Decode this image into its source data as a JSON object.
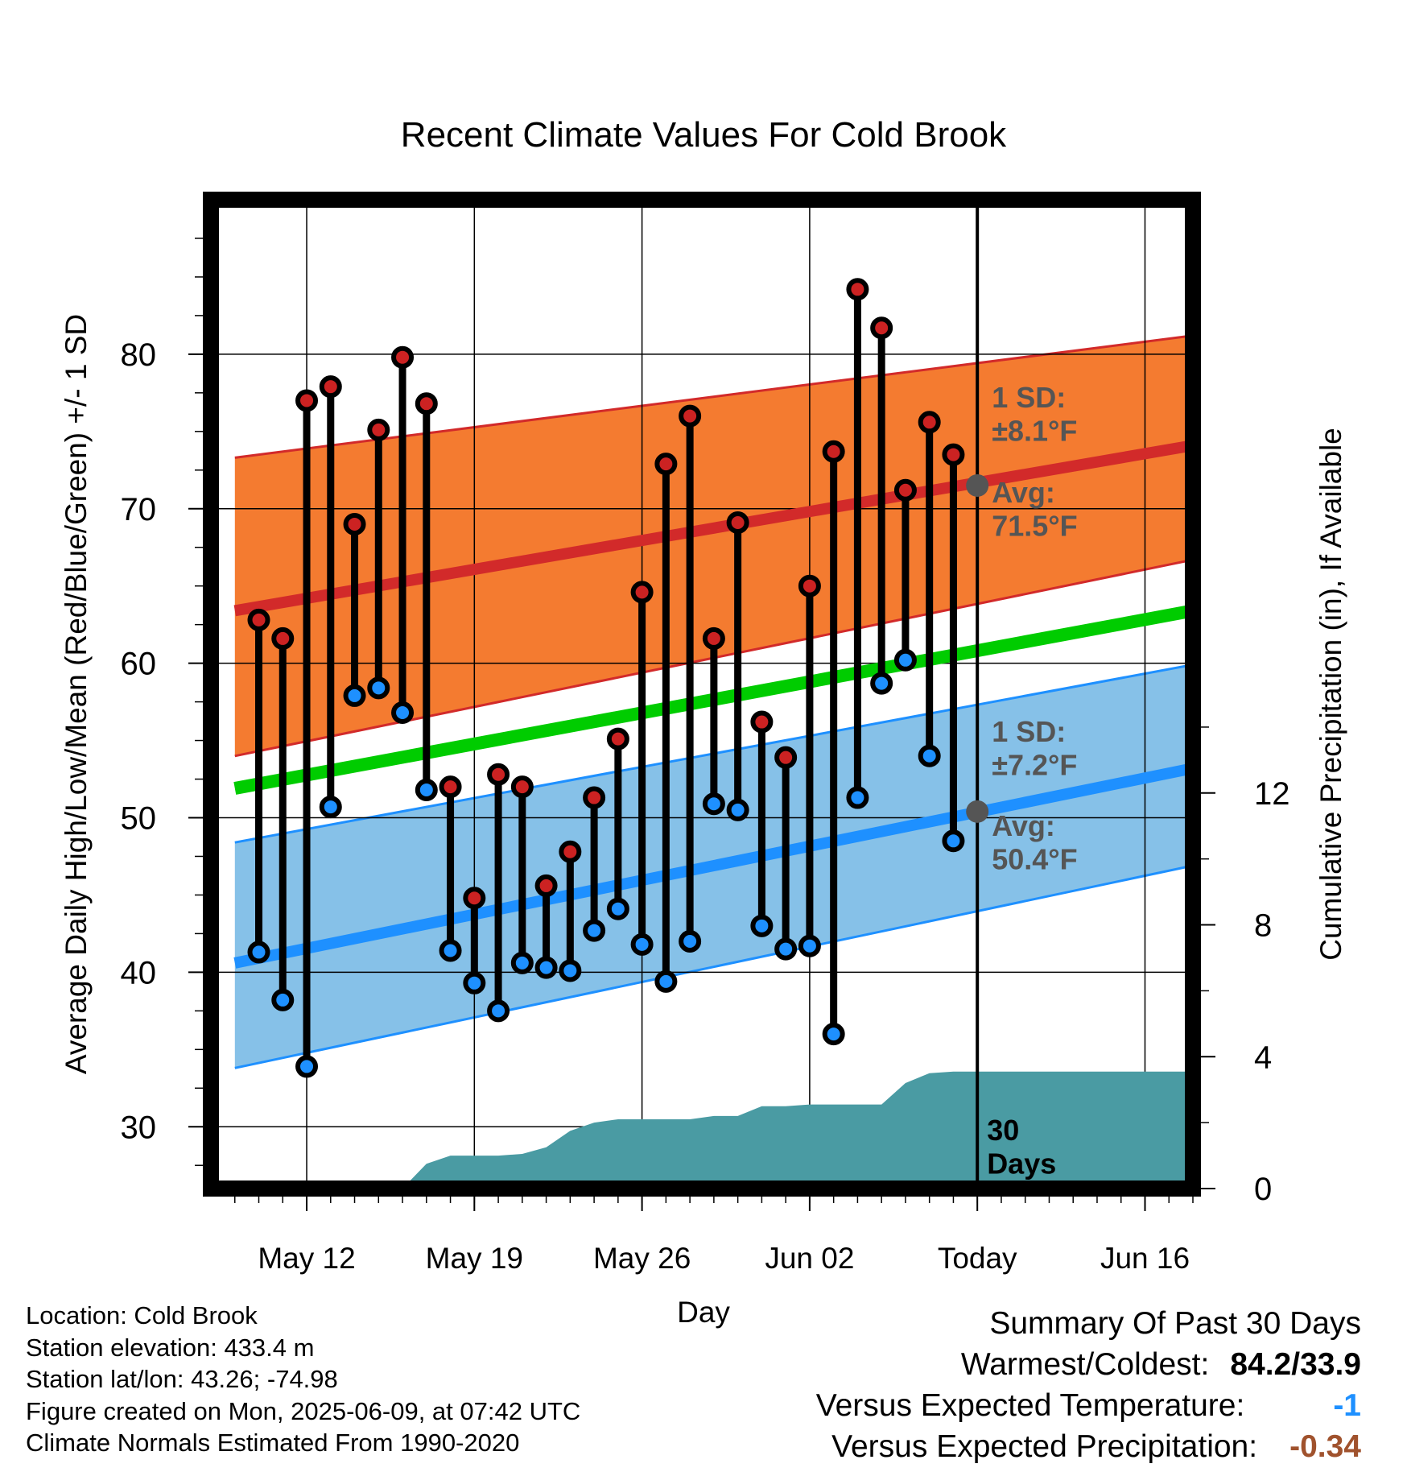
{
  "chart_data": {
    "type": "line",
    "title": "Recent Climate Values For Cold Brook",
    "xlabel": "Day",
    "ylabel_left": "Average Daily High/Low/Mean (Red/Blue/Green) +/- 1 SD",
    "ylabel_right": "Cumulative Precipitation (in), If Available",
    "ylim_left": [
      26,
      90
    ],
    "ylim_right": [
      0,
      30
    ],
    "x_ticks": [
      "May 12",
      "May 19",
      "May 26",
      "Jun 02",
      "Today",
      "Jun 16"
    ],
    "y_ticks_left": [
      30,
      40,
      50,
      60,
      70,
      80
    ],
    "y_ticks_right": [
      0,
      4,
      8,
      12
    ],
    "grid": true,
    "days": [
      "2025-05-10",
      "2025-05-11",
      "2025-05-12",
      "2025-05-13",
      "2025-05-14",
      "2025-05-15",
      "2025-05-16",
      "2025-05-17",
      "2025-05-18",
      "2025-05-19",
      "2025-05-20",
      "2025-05-21",
      "2025-05-22",
      "2025-05-23",
      "2025-05-24",
      "2025-05-25",
      "2025-05-26",
      "2025-05-27",
      "2025-05-28",
      "2025-05-29",
      "2025-05-30",
      "2025-05-31",
      "2025-06-01",
      "2025-06-02",
      "2025-06-03",
      "2025-06-04",
      "2025-06-05",
      "2025-06-06",
      "2025-06-07",
      "2025-06-08"
    ],
    "x_tick_days": [
      "2025-05-12",
      "2025-05-19",
      "2025-05-26",
      "2025-06-02",
      "2025-06-09",
      "2025-06-16"
    ],
    "x_range": [
      "2025-05-08",
      "2025-06-18"
    ],
    "series": [
      {
        "name": "High",
        "color": "#cc2222",
        "values": [
          62.8,
          61.6,
          77.0,
          77.9,
          69.0,
          75.1,
          79.8,
          76.8,
          52.0,
          44.8,
          52.8,
          52.0,
          45.6,
          47.8,
          51.3,
          55.1,
          64.6,
          72.9,
          76.0,
          61.6,
          69.1,
          56.2,
          53.9,
          65.0,
          73.7,
          84.2,
          81.7,
          71.2,
          75.6,
          73.5
        ]
      },
      {
        "name": "Low",
        "color": "#1e90ff",
        "values": [
          41.3,
          38.2,
          33.9,
          50.7,
          57.9,
          58.4,
          56.8,
          51.8,
          41.4,
          39.3,
          37.5,
          40.6,
          40.3,
          40.1,
          42.7,
          44.1,
          41.8,
          39.4,
          42.0,
          50.9,
          50.5,
          43.0,
          41.5,
          41.7,
          36.0,
          51.3,
          58.7,
          60.2,
          54.0,
          48.5
        ]
      }
    ],
    "normals": {
      "dates": [
        "2025-05-09",
        "2025-06-18"
      ],
      "high_avg": [
        63.4,
        74.1
      ],
      "high_sd_upper": [
        73.3,
        81.2
      ],
      "high_sd_lower": [
        54.0,
        66.7
      ],
      "mean_avg": [
        51.9,
        63.4
      ],
      "low_avg": [
        40.6,
        53.2
      ],
      "low_sd_upper": [
        48.4,
        59.9
      ],
      "low_sd_lower": [
        33.8,
        46.9
      ]
    },
    "precip_cumulative": {
      "days": [
        "2025-05-14",
        "2025-05-15",
        "2025-05-16",
        "2025-05-17",
        "2025-05-18",
        "2025-05-19",
        "2025-05-20",
        "2025-05-21",
        "2025-05-22",
        "2025-05-23",
        "2025-05-24",
        "2025-05-25",
        "2025-05-26",
        "2025-05-27",
        "2025-05-28",
        "2025-05-29",
        "2025-05-30",
        "2025-05-31",
        "2025-06-01",
        "2025-06-02",
        "2025-06-03",
        "2025-06-04",
        "2025-06-05",
        "2025-06-06",
        "2025-06-07",
        "2025-06-08",
        "2025-06-09",
        "2025-06-18"
      ],
      "values": [
        0,
        0,
        0,
        0.75,
        1.0,
        1.0,
        1.0,
        1.05,
        1.25,
        1.75,
        2.0,
        2.1,
        2.1,
        2.1,
        2.1,
        2.2,
        2.2,
        2.5,
        2.5,
        2.55,
        2.55,
        2.55,
        2.55,
        3.2,
        3.5,
        3.55,
        3.55,
        3.55
      ]
    },
    "annotations": {
      "today": "2025-06-09",
      "days_label": "30\nDays",
      "high_sd_label": "1 SD:\n±8.1°F",
      "high_avg_label": "Avg:\n71.5°F",
      "high_avg_value": 71.5,
      "low_sd_label": "1 SD:\n±7.2°F",
      "low_avg_label": "Avg:\n50.4°F",
      "low_avg_value": 50.4
    },
    "colors": {
      "high_band": "#f47b30",
      "high_line": "#d22a2a",
      "mean_line": "#00cc00",
      "low_band": "#86c1e8",
      "low_line": "#1e90ff",
      "precip": "#4a9ba3",
      "annotation_text": "#555555",
      "high_dot": "#cc2222",
      "low_dot": "#1e90ff"
    }
  },
  "footer": {
    "location": "Location: Cold Brook",
    "elevation": "Station elevation: 433.4 m",
    "latlon": "Station lat/lon: 43.26; -74.98",
    "created": "Figure created on Mon, 2025-06-09, at 07:42 UTC",
    "normals": "Climate Normals Estimated From 1990-2020"
  },
  "summary": {
    "title": "Summary Of Past 30 Days",
    "warmest_label": "Warmest/Coldest:",
    "warmest_value": "84.2/33.9",
    "temp_label": "Versus Expected Temperature:",
    "temp_value": "-1",
    "precip_label": "Versus Expected Precipitation:",
    "precip_value": "-0.34"
  }
}
